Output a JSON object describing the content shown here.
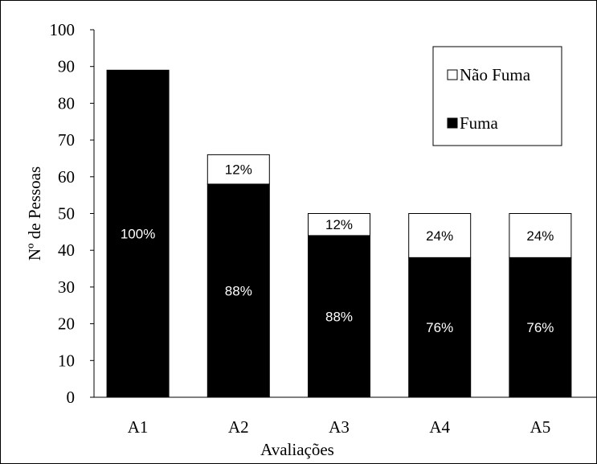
{
  "chart_data": {
    "type": "bar",
    "stacked": true,
    "categories": [
      "A1",
      "A2",
      "A3",
      "A4",
      "A5"
    ],
    "series": [
      {
        "name": "Fuma",
        "values": [
          89,
          58,
          44,
          38,
          38
        ],
        "labels": [
          "100%",
          "88%",
          "88%",
          "76%",
          "76%"
        ],
        "color": "#000000",
        "label_color": "#ffffff"
      },
      {
        "name": "Não Fuma",
        "values": [
          0,
          8,
          6,
          12,
          12
        ],
        "labels": [
          "",
          "12%",
          "12%",
          "24%",
          "24%"
        ],
        "color": "#ffffff",
        "label_color": "#000000"
      }
    ],
    "xlabel": "Avaliações",
    "ylabel": "Nº de Pessoas",
    "ylim": [
      0,
      100
    ],
    "yticks": [
      "0",
      "10",
      "20",
      "30",
      "40",
      "50",
      "60",
      "70",
      "80",
      "90",
      "100"
    ],
    "grid": false,
    "legend": {
      "position": "top-right",
      "entries": [
        "Não Fuma",
        "Fuma"
      ]
    }
  }
}
